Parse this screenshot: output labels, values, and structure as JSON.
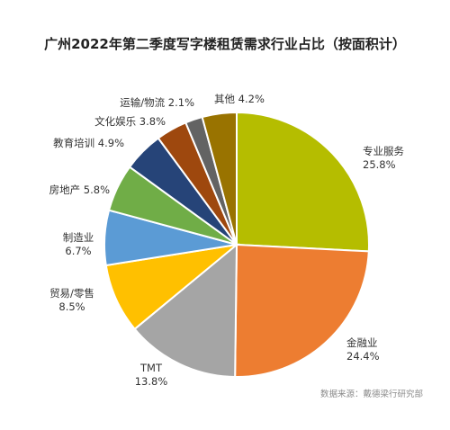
{
  "chart_data": {
    "type": "pie",
    "title": "广州2022年第二季度写字楼租赁需求行业占比（按面积计）",
    "source": "数据来源：戴德梁行研究部",
    "slices": [
      {
        "name": "专业服务",
        "value": 25.8,
        "value_label": "25.8%",
        "color": "#b5bd00"
      },
      {
        "name": "金融业",
        "value": 24.4,
        "value_label": "24.4%",
        "color": "#ed7d31"
      },
      {
        "name": "TMT",
        "value": 13.8,
        "value_label": "13.8%",
        "color": "#a5a5a5"
      },
      {
        "name": "贸易/零售",
        "value": 8.5,
        "value_label": "8.5%",
        "color": "#ffc000"
      },
      {
        "name": "制造业",
        "value": 6.7,
        "value_label": "6.7%",
        "color": "#5b9bd5"
      },
      {
        "name": "房地产",
        "value": 5.8,
        "value_label": "5.8%",
        "color": "#70ad47"
      },
      {
        "name": "教育培训",
        "value": 4.9,
        "value_label": "4.9%",
        "color": "#264478"
      },
      {
        "name": "文化娱乐",
        "value": 3.8,
        "value_label": "3.8%",
        "color": "#9e480e"
      },
      {
        "name": "运输/物流",
        "value": 2.1,
        "value_label": "2.1%",
        "color": "#636363"
      },
      {
        "name": "其他",
        "value": 4.2,
        "value_label": "4.2%",
        "color": "#997300"
      }
    ]
  }
}
